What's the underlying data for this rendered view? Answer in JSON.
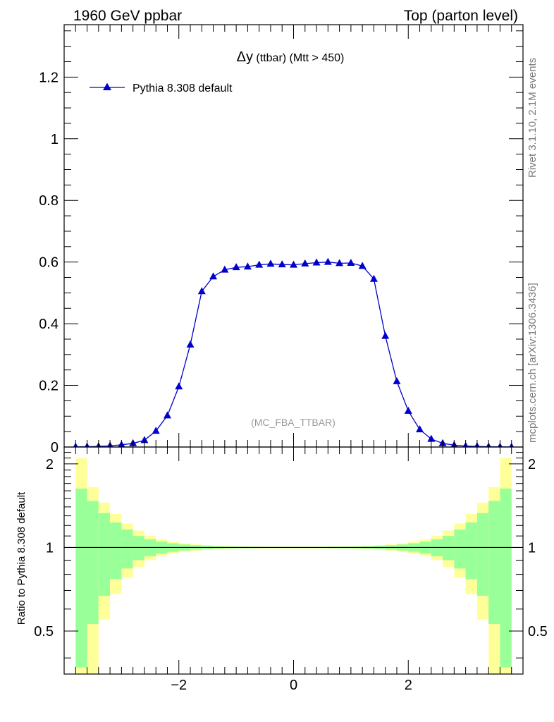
{
  "header": {
    "left": "1960 GeV ppbar",
    "right": "Top (parton level)"
  },
  "side_labels": {
    "rivet": "Rivet 3.1.10,  2.1M events",
    "mcplots": "mcplots.cern.ch [arXiv:1306.3436]"
  },
  "watermark": "(MC_FBA_TTBAR)",
  "chart_data": [
    {
      "type": "line",
      "title_symbol": "Δy",
      "title_rest": " (ttbar) (Mtt > 450)",
      "xlim": [
        -4.0,
        4.0
      ],
      "ylim": [
        0,
        1.37
      ],
      "yticks": [
        0,
        0.2,
        0.4,
        0.6,
        0.8,
        1,
        1.2
      ],
      "ytick_labels": [
        "0",
        "0.2",
        "0.4",
        "0.6",
        "0.8",
        "1",
        "1.2"
      ],
      "series": [
        {
          "name": "Pythia 8.308 default",
          "color": "#0000cc",
          "x": [
            -3.8,
            -3.6,
            -3.4,
            -3.2,
            -3.0,
            -2.8,
            -2.6,
            -2.4,
            -2.2,
            -2.0,
            -1.8,
            -1.6,
            -1.4,
            -1.2,
            -1.0,
            -0.8,
            -0.6,
            -0.4,
            -0.2,
            0.0,
            0.2,
            0.4,
            0.6,
            0.8,
            1.0,
            1.2,
            1.4,
            1.6,
            1.8,
            2.0,
            2.2,
            2.4,
            2.6,
            2.8,
            3.0,
            3.2,
            3.4,
            3.6,
            3.8
          ],
          "values": [
            0.0005,
            0.001,
            0.002,
            0.004,
            0.007,
            0.012,
            0.022,
            0.052,
            0.102,
            0.196,
            0.332,
            0.505,
            0.553,
            0.575,
            0.583,
            0.585,
            0.591,
            0.594,
            0.592,
            0.591,
            0.595,
            0.598,
            0.6,
            0.596,
            0.597,
            0.587,
            0.545,
            0.36,
            0.213,
            0.117,
            0.057,
            0.026,
            0.012,
            0.006,
            0.003,
            0.002,
            0.001,
            0.0005,
            0.0003
          ]
        }
      ]
    },
    {
      "type": "bar",
      "ylabel": "Ratio to Pythia 8.308 default",
      "xlim": [
        -4.0,
        4.0
      ],
      "ylim": [
        0.35,
        2.3
      ],
      "yticks": [
        0.5,
        1,
        2
      ],
      "ytick_labels": [
        "0.5",
        "1",
        "2"
      ],
      "xticks": [
        -2,
        0,
        2
      ],
      "xtick_labels": [
        "−2",
        "0",
        "2"
      ],
      "bin_edges": [
        -3.8,
        -3.6,
        -3.4,
        -3.2,
        -3.0,
        -2.8,
        -2.6,
        -2.4,
        -2.2,
        -2.0,
        -1.8,
        -1.6,
        -1.4,
        -1.2,
        -1.0,
        -0.8,
        -0.6,
        -0.4,
        -0.2,
        0.0,
        0.2,
        0.4,
        0.6,
        0.8,
        1.0,
        1.2,
        1.4,
        1.6,
        1.8,
        2.0,
        2.2,
        2.4,
        2.6,
        2.8,
        3.0,
        3.2,
        3.4,
        3.6,
        3.8
      ],
      "green_half": [
        0.63,
        0.47,
        0.33,
        0.23,
        0.16,
        0.1,
        0.07,
        0.05,
        0.035,
        0.025,
        0.018,
        0.013,
        0.01,
        0.008,
        0.007,
        0.006,
        0.005,
        0.005,
        0.005,
        0.005,
        0.005,
        0.005,
        0.006,
        0.007,
        0.008,
        0.01,
        0.013,
        0.018,
        0.025,
        0.035,
        0.05,
        0.07,
        0.1,
        0.16,
        0.23,
        0.33,
        0.47,
        0.63
      ],
      "yellow_half": [
        1.1,
        0.65,
        0.45,
        0.32,
        0.22,
        0.15,
        0.1,
        0.07,
        0.05,
        0.035,
        0.026,
        0.02,
        0.015,
        0.012,
        0.01,
        0.009,
        0.008,
        0.008,
        0.008,
        0.008,
        0.008,
        0.008,
        0.009,
        0.01,
        0.012,
        0.015,
        0.02,
        0.026,
        0.035,
        0.05,
        0.07,
        0.1,
        0.15,
        0.22,
        0.32,
        0.45,
        0.65,
        1.1
      ],
      "colors": {
        "green": "#99ff99",
        "yellow": "#ffff99",
        "line": "#000000"
      }
    }
  ]
}
